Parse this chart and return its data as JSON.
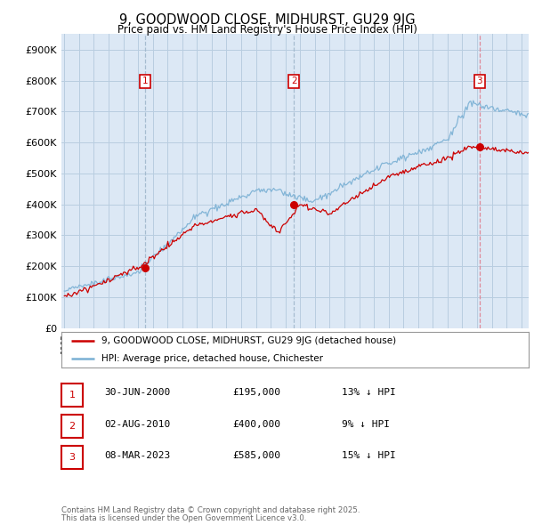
{
  "title": "9, GOODWOOD CLOSE, MIDHURST, GU29 9JG",
  "subtitle": "Price paid vs. HM Land Registry’s House Price Index (HPI)",
  "subtitle2": "Price paid vs. HM Land Registry's House Price Index (HPI)",
  "ylim": [
    0,
    950000
  ],
  "yticks": [
    0,
    100000,
    200000,
    300000,
    400000,
    500000,
    600000,
    700000,
    800000,
    900000
  ],
  "ytick_labels": [
    "£0",
    "£100K",
    "£200K",
    "£300K",
    "£400K",
    "£500K",
    "£600K",
    "£700K",
    "£800K",
    "£900K"
  ],
  "xlim_start": 1994.8,
  "xlim_end": 2026.5,
  "background_color": "#dce8f5",
  "fig_background": "#ffffff",
  "grid_color": "#b8cde0",
  "line_red_color": "#cc0000",
  "line_blue_color": "#7ab0d4",
  "vline_color_12": "#a0b8cc",
  "vline_color_3": "#e08090",
  "sale_dot_color": "#cc0000",
  "sales": [
    {
      "num": 1,
      "year": 2000.5,
      "price": 195000,
      "label": "30-JUN-2000",
      "price_str": "£195,000",
      "hpi_str": "13% ↓ HPI"
    },
    {
      "num": 2,
      "year": 2010.58,
      "price": 400000,
      "label": "02-AUG-2010",
      "price_str": "£400,000",
      "hpi_str": "9% ↓ HPI"
    },
    {
      "num": 3,
      "year": 2023.17,
      "price": 585000,
      "label": "08-MAR-2023",
      "price_str": "£585,000",
      "hpi_str": "15% ↓ HPI"
    }
  ],
  "legend_line1": "9, GOODWOOD CLOSE, MIDHURST, GU29 9JG (detached house)",
  "legend_line2": "HPI: Average price, detached house, Chichester",
  "footer1": "Contains HM Land Registry data © Crown copyright and database right 2025.",
  "footer2": "This data is licensed under the Open Government Licence v3.0."
}
